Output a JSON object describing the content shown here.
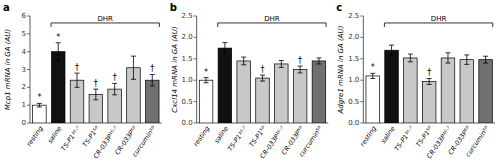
{
  "chart_data": [
    {
      "type": "bar",
      "title": "a",
      "ylabel": "Mcp1 mRNA in GA (AU)",
      "categories": [
        "resting",
        "saline",
        "TS-P1¹⁶·⁷",
        "TS-P1⁵⁰",
        "CR-033P¹⁶·⁷",
        "CR-033P⁵⁰",
        "curcumin⁵⁰"
      ],
      "values": [
        1.0,
        4.0,
        2.4,
        1.6,
        1.9,
        3.1,
        2.4
      ],
      "errors": [
        0.1,
        0.5,
        0.4,
        0.3,
        0.32,
        0.65,
        0.32
      ],
      "colors": [
        "white",
        "#111111",
        "#c8c8c8",
        "#c8c8c8",
        "#c8c8c8",
        "#c8c8c8",
        "#707070"
      ],
      "annotations": [
        "*",
        "*",
        "†",
        "†",
        "†",
        null,
        "†"
      ],
      "bracket": {
        "text": "DHR",
        "from": "saline",
        "to": "curcumin⁵⁰"
      },
      "ylim": [
        0,
        6.0
      ],
      "yticks": [
        0,
        1,
        2,
        3,
        4,
        5,
        6
      ]
    },
    {
      "type": "bar",
      "title": "b",
      "ylabel": "Cxcl14 mRNA in GA (AU)",
      "categories": [
        "resting",
        "saline",
        "TS-P1¹⁶·⁷",
        "TS-P1⁵⁰",
        "CR-033P¹⁶·⁷",
        "CR-033P⁵⁰",
        "curcumin⁵⁰"
      ],
      "values": [
        1.0,
        1.75,
        1.45,
        1.05,
        1.38,
        1.25,
        1.45
      ],
      "errors": [
        0.06,
        0.13,
        0.09,
        0.07,
        0.08,
        0.08,
        0.07
      ],
      "colors": [
        "white",
        "#111111",
        "#c8c8c8",
        "#c8c8c8",
        "#c8c8c8",
        "#c8c8c8",
        "#707070"
      ],
      "annotations": [
        "*",
        null,
        null,
        "†",
        null,
        "†",
        null
      ],
      "bracket": {
        "text": "DHR",
        "from": "saline",
        "to": "curcumin⁵⁰"
      },
      "ylim": [
        0,
        2.5
      ],
      "yticks": [
        {
          "value": 0,
          "label": "0.0"
        },
        0.5,
        {
          "value": 1.0,
          "label": "1.0"
        },
        1.5,
        {
          "value": 2.0,
          "label": "2.0"
        },
        2.5
      ]
    },
    {
      "type": "bar",
      "title": "c",
      "ylabel": "Adgre1 mRNA in GA (AU)",
      "categories": [
        "resting",
        "saline",
        "TS-P1¹⁶·⁷",
        "TS-P1⁵⁰",
        "CR-033P¹⁶·⁷",
        "CR-033P⁵⁰",
        "curcumin⁵⁰"
      ],
      "values": [
        1.1,
        1.7,
        1.52,
        0.97,
        1.52,
        1.48,
        1.48
      ],
      "errors": [
        0.06,
        0.12,
        0.09,
        0.07,
        0.12,
        0.11,
        0.08
      ],
      "colors": [
        "white",
        "#111111",
        "#c8c8c8",
        "#c8c8c8",
        "#c8c8c8",
        "#c8c8c8",
        "#707070"
      ],
      "annotations": [
        "*",
        null,
        null,
        "†",
        null,
        null,
        null
      ],
      "bracket": {
        "text": "DHR",
        "from": "saline",
        "to": "curcumin⁵⁰"
      },
      "ylim": [
        0,
        2.5
      ],
      "yticks": [
        {
          "value": 0,
          "label": "0.0"
        },
        0.5,
        {
          "value": 1.0,
          "label": "1.0"
        },
        1.5,
        {
          "value": 2.0,
          "label": "2.0"
        },
        2.5
      ]
    }
  ]
}
